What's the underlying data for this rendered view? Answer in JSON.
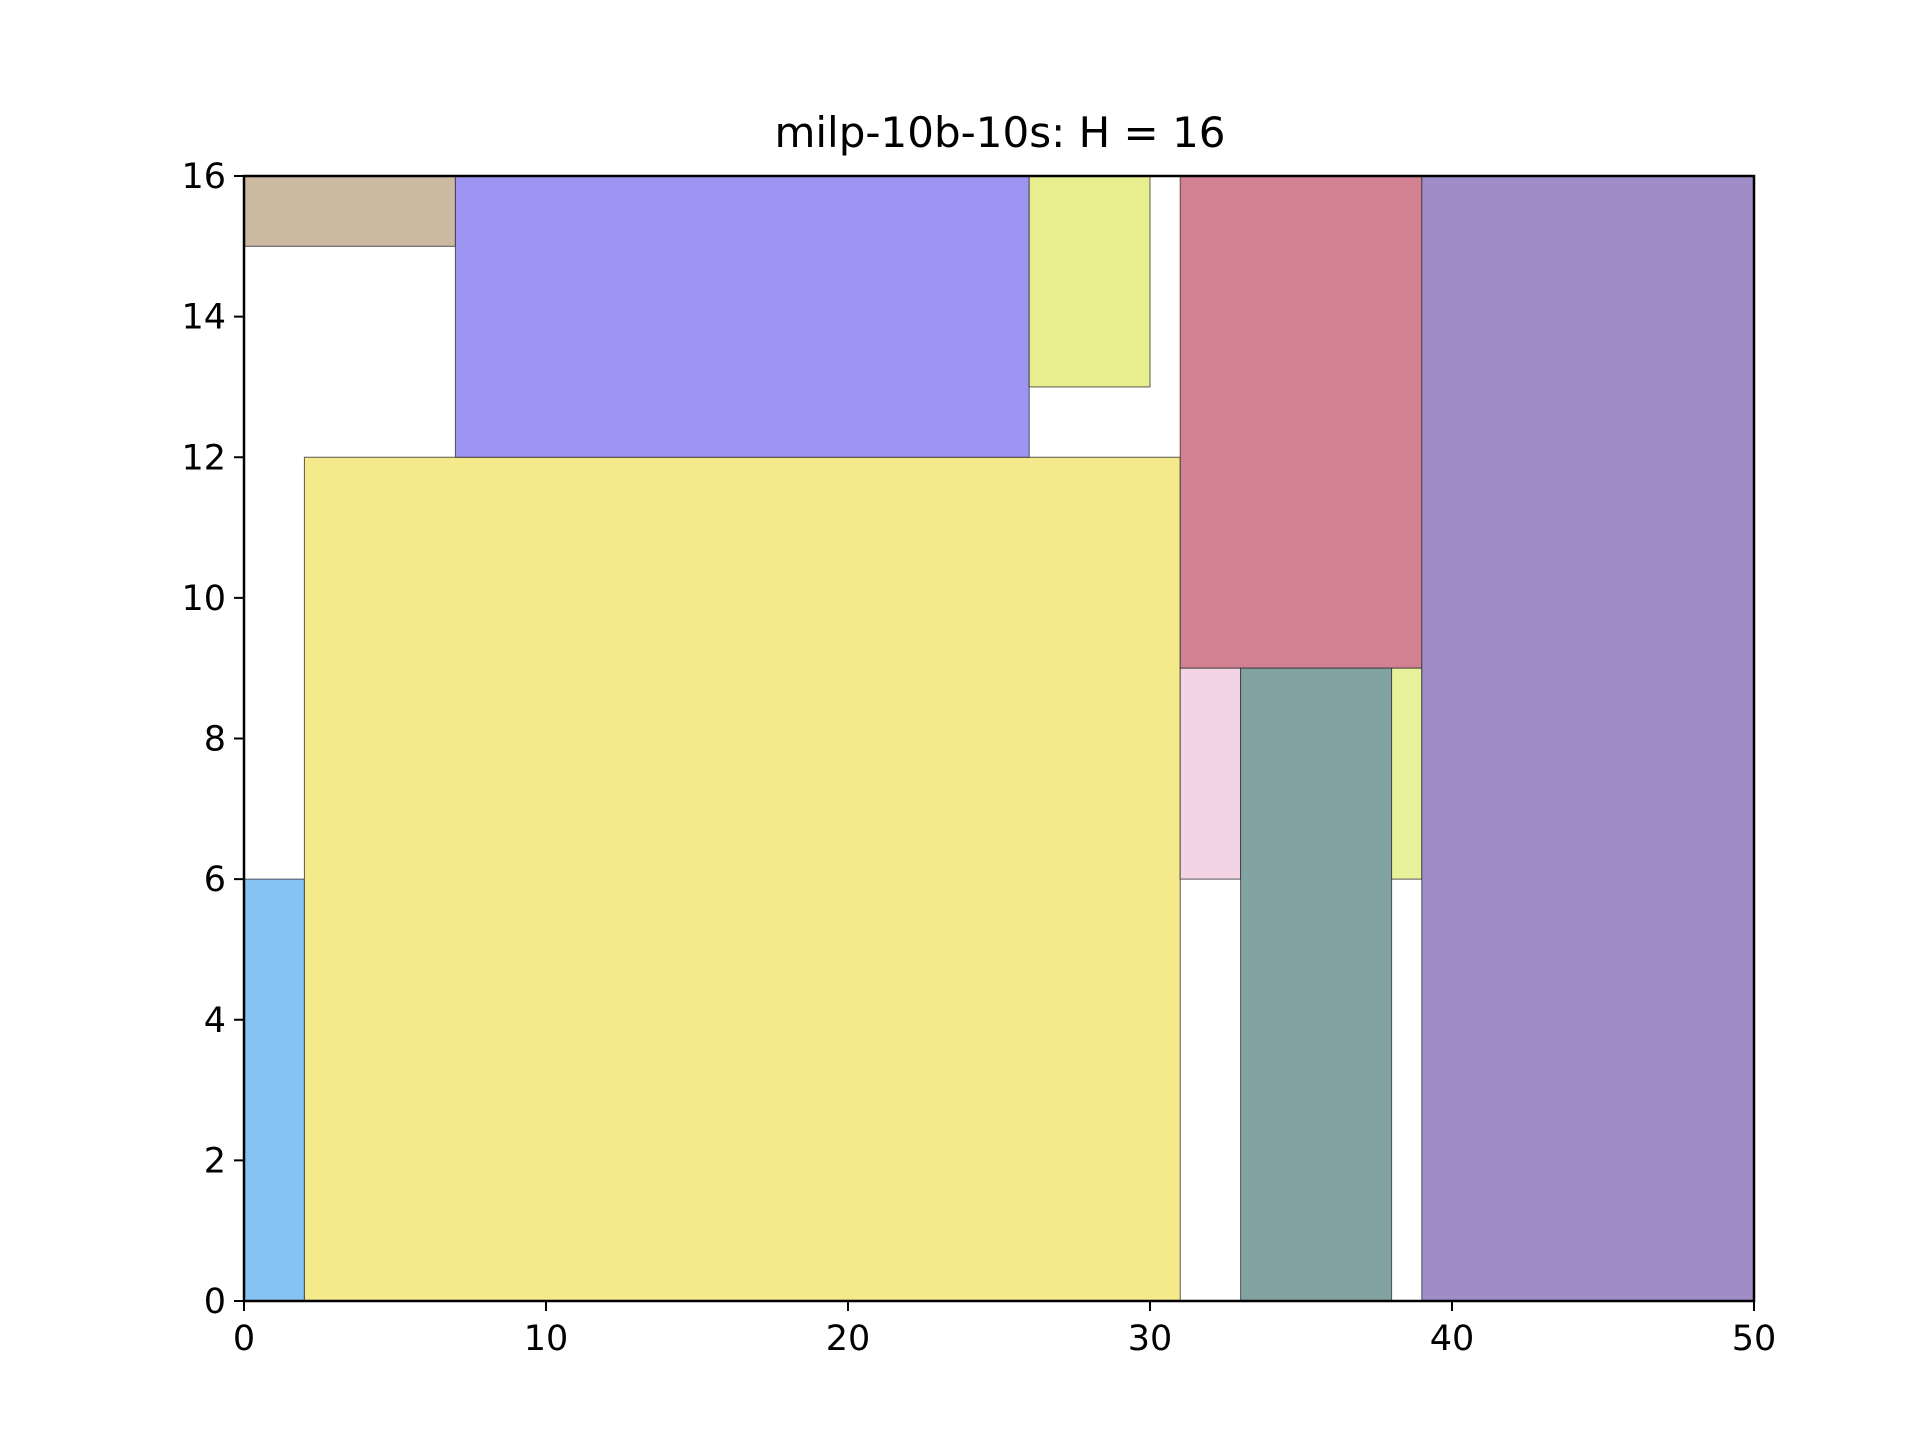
{
  "chart_data": {
    "type": "rectangle-packing",
    "title": "milp-10b-10s: H = 16",
    "xlabel": "",
    "ylabel": "",
    "xlim": [
      0,
      50
    ],
    "ylim": [
      0,
      16
    ],
    "grid": false,
    "xticks": [
      "0",
      "10",
      "20",
      "30",
      "40",
      "50"
    ],
    "yticks": [
      "0",
      "2",
      "4",
      "6",
      "8",
      "10",
      "12",
      "14",
      "16"
    ],
    "rectangles": [
      {
        "x": 0,
        "y": 0,
        "width": 2,
        "height": 6,
        "color": "#85c3f5"
      },
      {
        "x": 2,
        "y": 0,
        "width": 29,
        "height": 12,
        "color": "#f4e98b"
      },
      {
        "x": 0,
        "y": 15,
        "width": 7,
        "height": 1,
        "color": "#cbb9a1"
      },
      {
        "x": 7,
        "y": 12,
        "width": 19,
        "height": 4,
        "color": "#9e95f3"
      },
      {
        "x": 26,
        "y": 13,
        "width": 4,
        "height": 3,
        "color": "#e8ee8d"
      },
      {
        "x": 31,
        "y": 9,
        "width": 8,
        "height": 7,
        "color": "#d28193"
      },
      {
        "x": 31,
        "y": 6,
        "width": 2,
        "height": 3,
        "color": "#f2d4e4"
      },
      {
        "x": 33,
        "y": 0,
        "width": 5,
        "height": 9,
        "color": "#82a3a2"
      },
      {
        "x": 38,
        "y": 6,
        "width": 1,
        "height": 3,
        "color": "#e8f29b"
      },
      {
        "x": 39,
        "y": 0,
        "width": 11,
        "height": 16,
        "color": "#a08cc6"
      }
    ]
  }
}
